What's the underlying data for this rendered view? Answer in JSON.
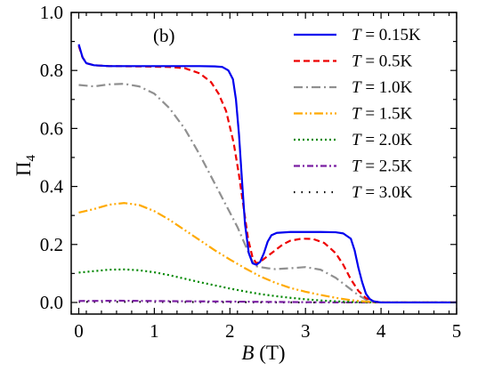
{
  "chart_data": {
    "type": "line",
    "panel_label": "(b)",
    "xlabel": "B (T)",
    "ylabel": "Π4",
    "xlim": [
      -0.1,
      5.0
    ],
    "ylim": [
      -0.04,
      1.0
    ],
    "xticks": [
      0,
      1,
      2,
      3,
      4,
      5
    ],
    "yticks": [
      0.0,
      0.2,
      0.4,
      0.6,
      0.8,
      1.0
    ],
    "xtick_labels": [
      "0",
      "1",
      "2",
      "3",
      "4",
      "5"
    ],
    "ytick_labels": [
      "0.0",
      "0.2",
      "0.4",
      "0.6",
      "0.8",
      "1.0"
    ],
    "grid": false,
    "legend_position": "top-right",
    "series": [
      {
        "name": "T = 0.15K",
        "label_var": "T",
        "label_value": "= 0.15K",
        "color": "#0000ee",
        "dash": "solid",
        "points": [
          [
            0.0,
            0.89
          ],
          [
            0.05,
            0.845
          ],
          [
            0.1,
            0.825
          ],
          [
            0.2,
            0.818
          ],
          [
            0.4,
            0.815
          ],
          [
            0.8,
            0.815
          ],
          [
            1.2,
            0.815
          ],
          [
            1.6,
            0.815
          ],
          [
            1.8,
            0.814
          ],
          [
            1.9,
            0.812
          ],
          [
            1.98,
            0.8
          ],
          [
            2.04,
            0.77
          ],
          [
            2.08,
            0.7
          ],
          [
            2.12,
            0.58
          ],
          [
            2.16,
            0.42
          ],
          [
            2.2,
            0.27
          ],
          [
            2.25,
            0.17
          ],
          [
            2.3,
            0.135
          ],
          [
            2.35,
            0.13
          ],
          [
            2.4,
            0.14
          ],
          [
            2.45,
            0.17
          ],
          [
            2.5,
            0.21
          ],
          [
            2.55,
            0.232
          ],
          [
            2.62,
            0.24
          ],
          [
            2.8,
            0.243
          ],
          [
            3.2,
            0.243
          ],
          [
            3.4,
            0.242
          ],
          [
            3.5,
            0.238
          ],
          [
            3.6,
            0.22
          ],
          [
            3.65,
            0.18
          ],
          [
            3.7,
            0.12
          ],
          [
            3.75,
            0.07
          ],
          [
            3.8,
            0.03
          ],
          [
            3.85,
            0.012
          ],
          [
            3.9,
            0.004
          ],
          [
            4.0,
            0.0
          ],
          [
            4.5,
            0.0
          ],
          [
            5.0,
            0.0
          ]
        ]
      },
      {
        "name": "T = 0.5K",
        "label_var": "T",
        "label_value": "= 0.5K",
        "color": "#ee0000",
        "dash": "dashed",
        "points": [
          [
            0.0,
            0.885
          ],
          [
            0.05,
            0.845
          ],
          [
            0.1,
            0.825
          ],
          [
            0.2,
            0.818
          ],
          [
            0.4,
            0.815
          ],
          [
            0.8,
            0.814
          ],
          [
            1.2,
            0.812
          ],
          [
            1.4,
            0.808
          ],
          [
            1.6,
            0.79
          ],
          [
            1.75,
            0.76
          ],
          [
            1.85,
            0.72
          ],
          [
            1.95,
            0.66
          ],
          [
            2.05,
            0.55
          ],
          [
            2.12,
            0.44
          ],
          [
            2.18,
            0.33
          ],
          [
            2.24,
            0.22
          ],
          [
            2.3,
            0.155
          ],
          [
            2.35,
            0.135
          ],
          [
            2.4,
            0.14
          ],
          [
            2.5,
            0.16
          ],
          [
            2.6,
            0.18
          ],
          [
            2.7,
            0.2
          ],
          [
            2.8,
            0.213
          ],
          [
            2.95,
            0.22
          ],
          [
            3.1,
            0.219
          ],
          [
            3.25,
            0.205
          ],
          [
            3.4,
            0.17
          ],
          [
            3.5,
            0.13
          ],
          [
            3.6,
            0.08
          ],
          [
            3.7,
            0.04
          ],
          [
            3.8,
            0.015
          ],
          [
            3.9,
            0.004
          ],
          [
            4.0,
            0.0
          ],
          [
            4.5,
            0.0
          ],
          [
            5.0,
            0.0
          ]
        ]
      },
      {
        "name": "T = 1.0K",
        "label_var": "T",
        "label_value": "= 1.0K",
        "color": "#909090",
        "dash": "dashdot",
        "points": [
          [
            0.0,
            0.75
          ],
          [
            0.2,
            0.745
          ],
          [
            0.4,
            0.752
          ],
          [
            0.6,
            0.754
          ],
          [
            0.8,
            0.745
          ],
          [
            1.0,
            0.72
          ],
          [
            1.2,
            0.67
          ],
          [
            1.4,
            0.6
          ],
          [
            1.6,
            0.51
          ],
          [
            1.8,
            0.41
          ],
          [
            1.9,
            0.36
          ],
          [
            2.0,
            0.31
          ],
          [
            2.1,
            0.26
          ],
          [
            2.2,
            0.2
          ],
          [
            2.3,
            0.14
          ],
          [
            2.35,
            0.125
          ],
          [
            2.4,
            0.122
          ],
          [
            2.5,
            0.118
          ],
          [
            2.6,
            0.115
          ],
          [
            2.8,
            0.118
          ],
          [
            3.0,
            0.122
          ],
          [
            3.2,
            0.113
          ],
          [
            3.4,
            0.085
          ],
          [
            3.6,
            0.045
          ],
          [
            3.7,
            0.025
          ],
          [
            3.8,
            0.01
          ],
          [
            3.9,
            0.003
          ],
          [
            4.0,
            0.0
          ],
          [
            4.5,
            0.0
          ],
          [
            5.0,
            0.0
          ]
        ]
      },
      {
        "name": "T = 1.5K",
        "label_var": "T",
        "label_value": "= 1.5K",
        "color": "#ffaa00",
        "dash": "dashdotdot",
        "points": [
          [
            0.0,
            0.31
          ],
          [
            0.2,
            0.322
          ],
          [
            0.4,
            0.337
          ],
          [
            0.6,
            0.343
          ],
          [
            0.8,
            0.336
          ],
          [
            1.0,
            0.315
          ],
          [
            1.2,
            0.285
          ],
          [
            1.4,
            0.25
          ],
          [
            1.6,
            0.215
          ],
          [
            1.8,
            0.18
          ],
          [
            2.0,
            0.148
          ],
          [
            2.2,
            0.118
          ],
          [
            2.4,
            0.09
          ],
          [
            2.6,
            0.068
          ],
          [
            2.8,
            0.05
          ],
          [
            3.0,
            0.037
          ],
          [
            3.2,
            0.026
          ],
          [
            3.4,
            0.016
          ],
          [
            3.6,
            0.008
          ],
          [
            3.8,
            0.003
          ],
          [
            4.0,
            0.0
          ],
          [
            4.5,
            0.0
          ],
          [
            5.0,
            0.0
          ]
        ]
      },
      {
        "name": "T = 2.0K",
        "label_var": "T",
        "label_value": "= 2.0K",
        "color": "#008800",
        "dash": "dotted",
        "points": [
          [
            0.0,
            0.103
          ],
          [
            0.2,
            0.108
          ],
          [
            0.4,
            0.113
          ],
          [
            0.6,
            0.114
          ],
          [
            0.8,
            0.111
          ],
          [
            1.0,
            0.104
          ],
          [
            1.2,
            0.094
          ],
          [
            1.4,
            0.082
          ],
          [
            1.6,
            0.07
          ],
          [
            1.8,
            0.059
          ],
          [
            2.0,
            0.048
          ],
          [
            2.2,
            0.038
          ],
          [
            2.4,
            0.029
          ],
          [
            2.6,
            0.022
          ],
          [
            2.8,
            0.016
          ],
          [
            3.0,
            0.011
          ],
          [
            3.2,
            0.007
          ],
          [
            3.4,
            0.004
          ],
          [
            3.6,
            0.002
          ],
          [
            3.8,
            0.001
          ],
          [
            4.0,
            0.0
          ],
          [
            5.0,
            0.0
          ]
        ]
      },
      {
        "name": "T = 2.5K",
        "label_var": "T",
        "label_value": "= 2.5K",
        "color": "#7a1fa2",
        "dash": "dashdot-tight",
        "points": [
          [
            0.0,
            0.005
          ],
          [
            0.5,
            0.006
          ],
          [
            1.0,
            0.005
          ],
          [
            1.5,
            0.004
          ],
          [
            2.0,
            0.003
          ],
          [
            2.5,
            0.002
          ],
          [
            3.0,
            0.001
          ],
          [
            3.5,
            0.0
          ],
          [
            4.0,
            0.0
          ],
          [
            5.0,
            0.0
          ]
        ]
      },
      {
        "name": "T = 3.0K",
        "label_var": "T",
        "label_value": "= 3.0K",
        "color": "#000000",
        "dash": "dotted-sparse",
        "points": [
          [
            0.0,
            0.002
          ],
          [
            1.0,
            0.002
          ],
          [
            2.0,
            0.001
          ],
          [
            3.0,
            0.0
          ],
          [
            4.0,
            0.0
          ],
          [
            5.0,
            0.0
          ]
        ]
      }
    ]
  }
}
